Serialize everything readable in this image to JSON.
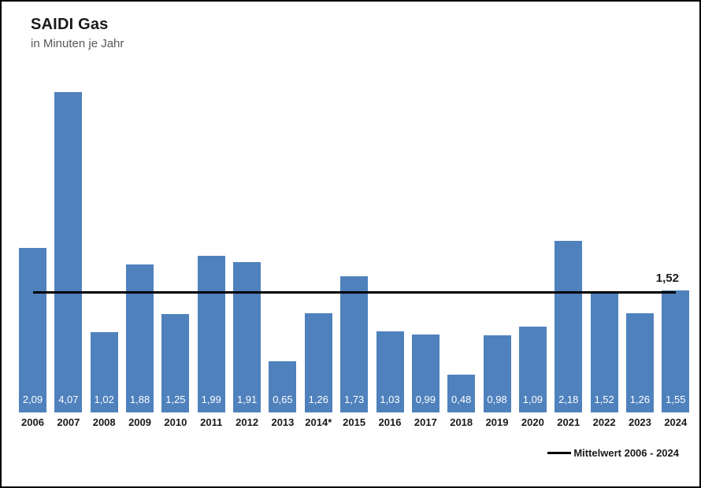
{
  "page": {
    "title": "SAIDI Gas",
    "subtitle": "in Minuten je Jahr"
  },
  "chart_data": {
    "type": "bar",
    "title": "SAIDI Gas",
    "subtitle": "in Minuten je Jahr",
    "categories": [
      "2006",
      "2007",
      "2008",
      "2009",
      "2010",
      "2011",
      "2012",
      "2013",
      "2014*",
      "2015",
      "2016",
      "2017",
      "2018",
      "2019",
      "2020",
      "2021",
      "2022",
      "2023",
      "2024"
    ],
    "values": [
      2.09,
      4.07,
      1.02,
      1.88,
      1.25,
      1.99,
      1.91,
      0.65,
      1.26,
      1.73,
      1.03,
      0.99,
      0.48,
      0.98,
      1.09,
      2.18,
      1.52,
      1.26,
      1.55
    ],
    "value_labels": [
      "2,09",
      "4,07",
      "1,02",
      "1,88",
      "1,25",
      "1,99",
      "1,91",
      "0,65",
      "1,26",
      "1,73",
      "1,03",
      "0,99",
      "0,48",
      "0,98",
      "1,09",
      "2,18",
      "1,52",
      "1,26",
      "1,55"
    ],
    "xlabel": "",
    "ylabel": "Minuten je Jahr",
    "ylim": [
      0,
      4.4
    ],
    "grid": false,
    "y_axis_visible": false,
    "bar_color": "#4f81bd",
    "bar_label_color": "#ffffff",
    "mean_line": {
      "value": 1.52,
      "label": "1,52",
      "color": "#000000",
      "legend_label": "Mittelwert 2006 - 2024",
      "legend_position": "bottom-right"
    }
  }
}
